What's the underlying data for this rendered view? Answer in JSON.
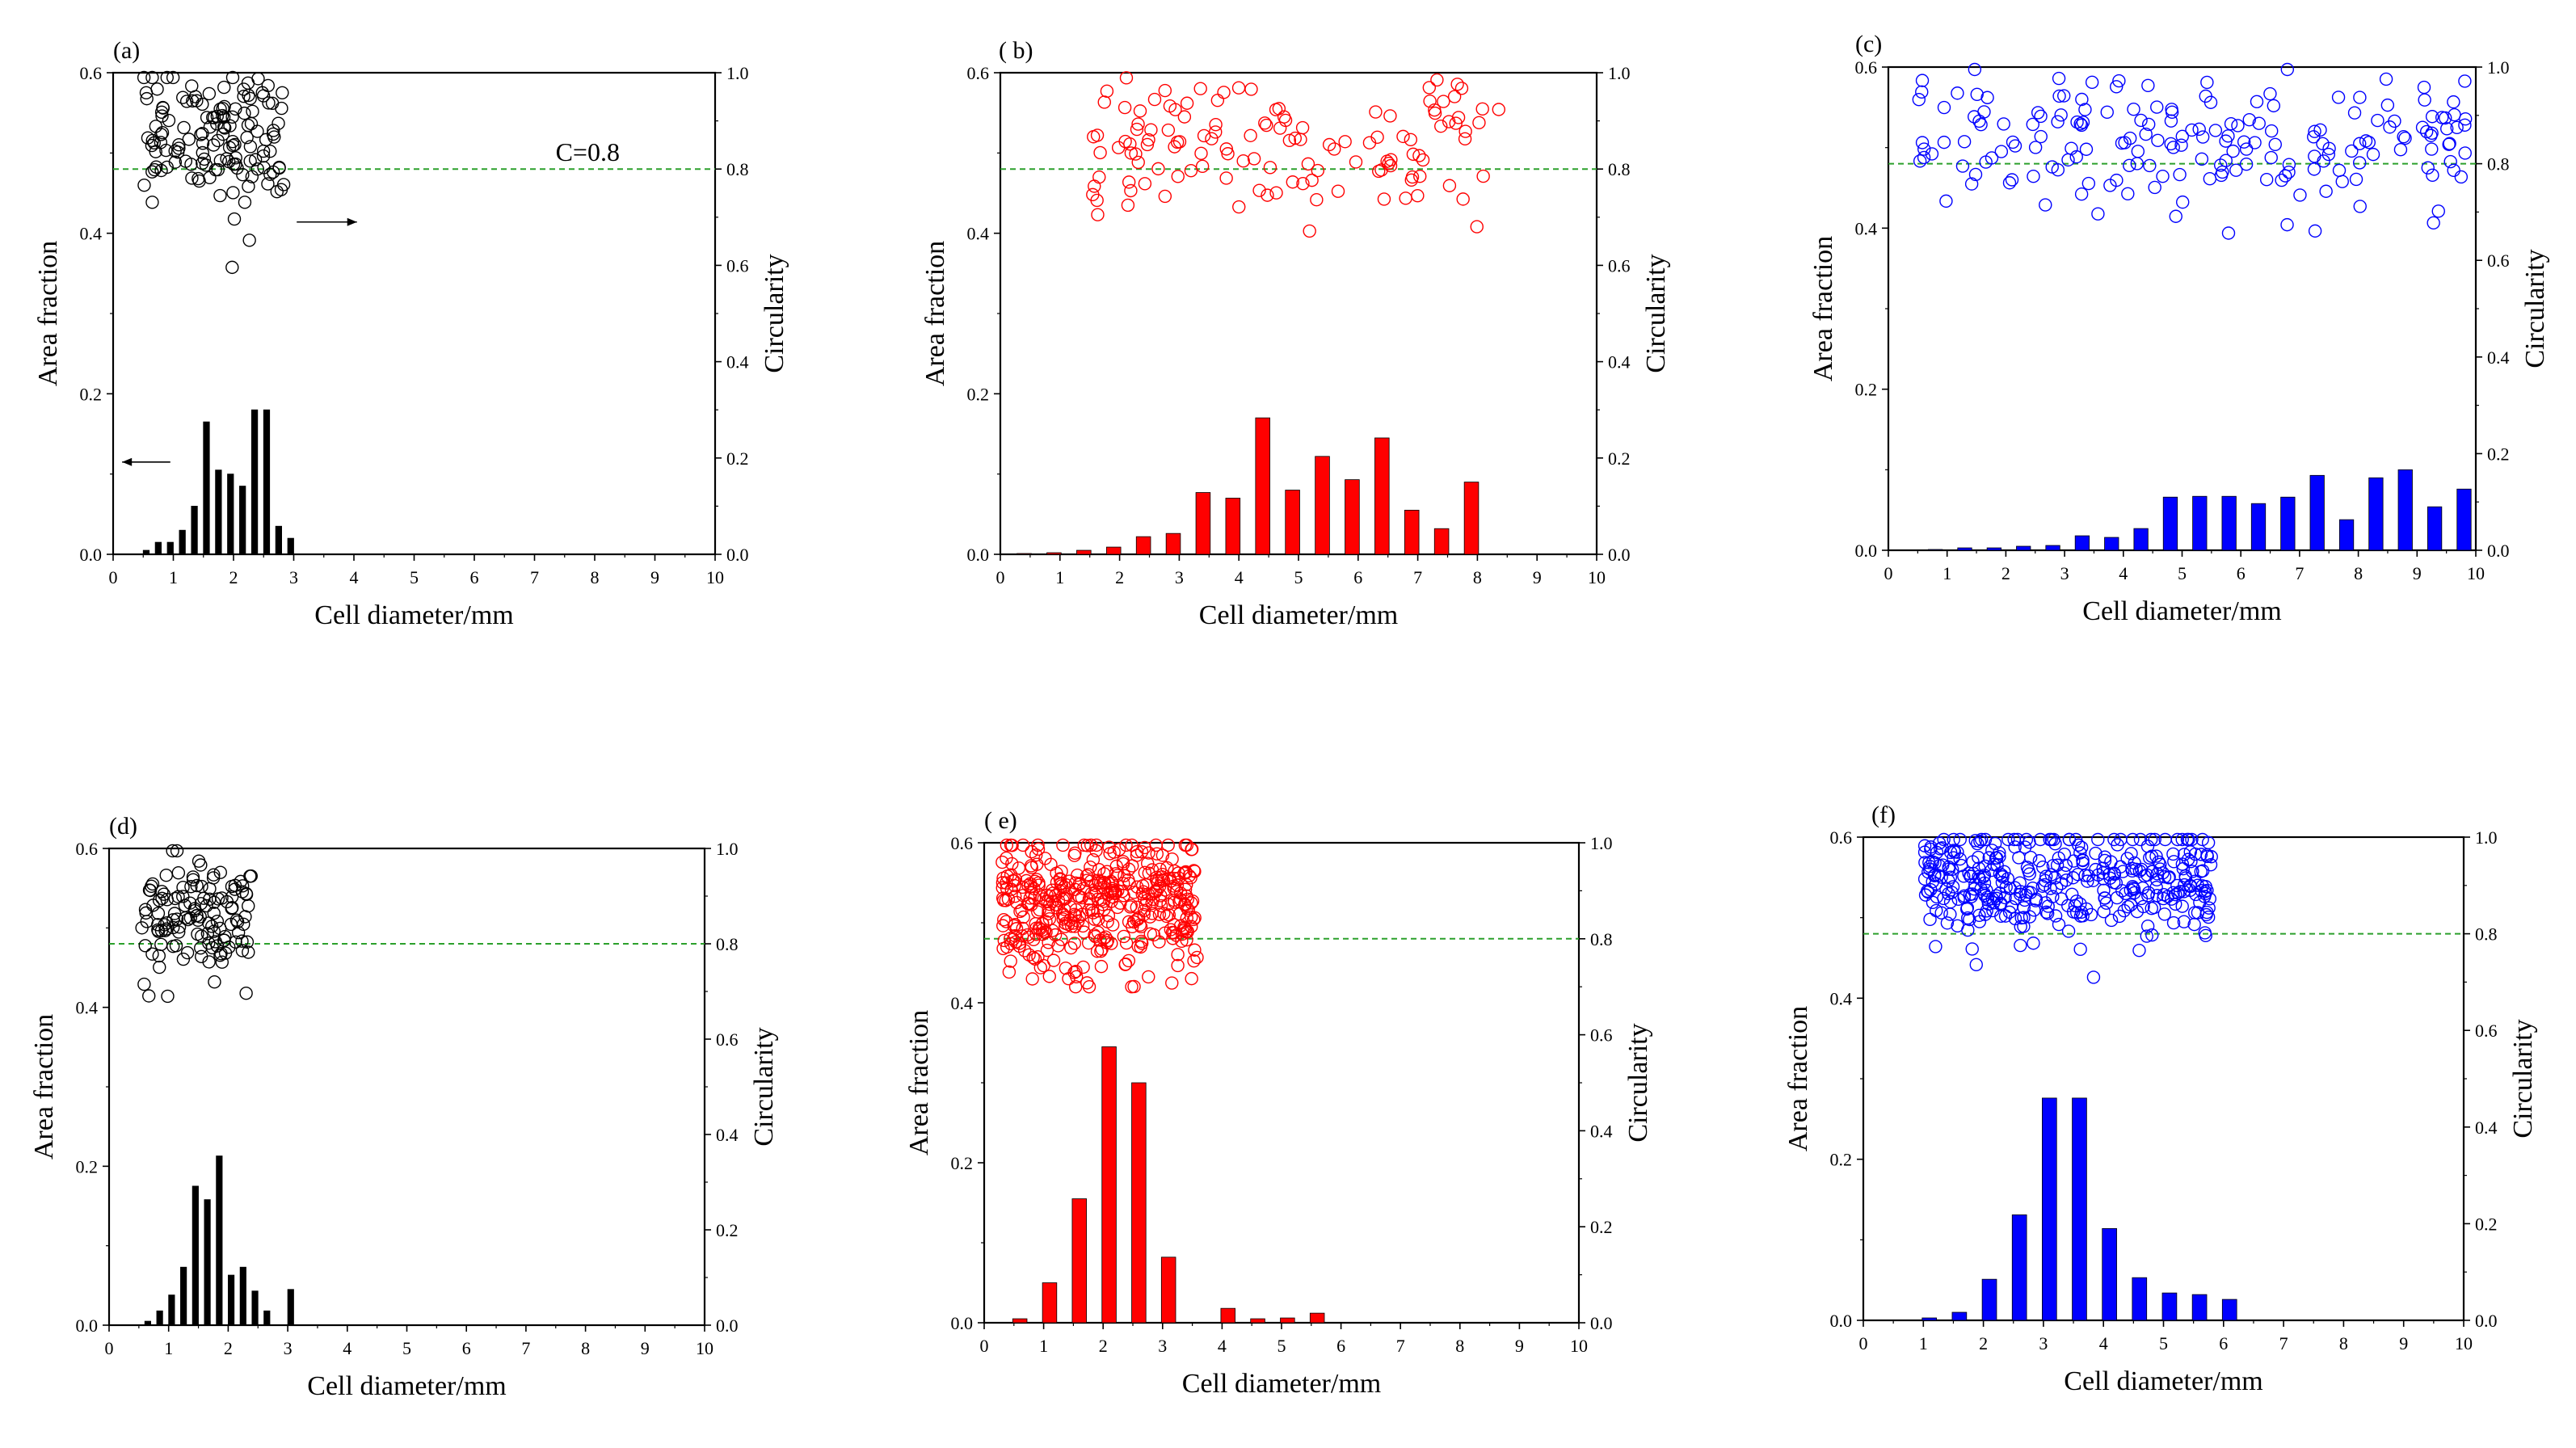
{
  "figure": {
    "background": "#ffffff"
  },
  "chart_data": [
    {
      "panel": "(a)",
      "type": "bar+scatter",
      "xlabel": "Cell diameter/mm",
      "ylabel": "Area fraction",
      "y2label": "Circularity",
      "xlim": [
        0,
        10
      ],
      "ylim": [
        0,
        0.6
      ],
      "y2lim": [
        0,
        1.0
      ],
      "xticks": [
        "0",
        "1",
        "2",
        "3",
        "4",
        "5",
        "6",
        "7",
        "8",
        "9",
        "10"
      ],
      "yticks": [
        "0.0",
        "0.2",
        "0.4",
        "0.6"
      ],
      "y2ticks": [
        "0.0",
        "0.2",
        "0.4",
        "0.6",
        "0.8",
        "1.0"
      ],
      "color": "#000000",
      "threshold": 0.8,
      "threshold_color": "#2ca02c",
      "annotation": "C=0.8",
      "bar_width": 0.1,
      "bars": {
        "x": [
          0.55,
          0.75,
          0.95,
          1.15,
          1.35,
          1.55,
          1.75,
          1.95,
          2.15,
          2.35,
          2.55,
          2.75,
          2.95
        ],
        "values": [
          0.005,
          0.015,
          0.015,
          0.03,
          0.06,
          0.165,
          0.105,
          0.1,
          0.085,
          0.18,
          0.18,
          0.035,
          0.02
        ]
      },
      "scatter": {
        "x_range": [
          0.5,
          2.85
        ],
        "circ_mean": 0.86,
        "circ_sd": 0.07,
        "circ_range": [
          0.53,
          0.99
        ],
        "count": 140,
        "seed": 11
      }
    },
    {
      "panel": "( b)",
      "type": "bar+scatter",
      "xlabel": "Cell diameter/mm",
      "ylabel": "Area fraction",
      "y2label": "Circularity",
      "xlim": [
        0,
        10
      ],
      "ylim": [
        0,
        0.6
      ],
      "y2lim": [
        0,
        1.0
      ],
      "xticks": [
        "0",
        "1",
        "2",
        "3",
        "4",
        "5",
        "6",
        "7",
        "8",
        "9",
        "10"
      ],
      "yticks": [
        "0.0",
        "0.2",
        "0.4",
        "0.6"
      ],
      "y2ticks": [
        "0.0",
        "0.2",
        "0.4",
        "0.6",
        "0.8",
        "1.0"
      ],
      "color": "#ff0000",
      "threshold": 0.8,
      "threshold_color": "#2ca02c",
      "bar_width": 0.24,
      "bars": {
        "x": [
          0.4,
          0.9,
          1.4,
          1.9,
          2.4,
          2.9,
          3.4,
          3.9,
          4.4,
          4.9,
          5.4,
          5.9,
          6.4,
          6.9,
          7.4,
          7.9
        ],
        "values": [
          0.001,
          0.002,
          0.005,
          0.009,
          0.022,
          0.026,
          0.077,
          0.07,
          0.17,
          0.08,
          0.122,
          0.093,
          0.145,
          0.055,
          0.032,
          0.09
        ]
      },
      "scatter": {
        "x_range": [
          1.5,
          8.4
        ],
        "circ_mean": 0.85,
        "circ_sd": 0.08,
        "circ_range": [
          0.46,
          0.99
        ],
        "count": 130,
        "seed": 23
      }
    },
    {
      "panel": "(c)",
      "type": "bar+scatter",
      "xlabel": "Cell diameter/mm",
      "ylabel": "Area fraction",
      "y2label": "Circularity",
      "xlim": [
        0,
        10
      ],
      "ylim": [
        0,
        0.6
      ],
      "y2lim": [
        0,
        1.0
      ],
      "xticks": [
        "0",
        "1",
        "2",
        "3",
        "4",
        "5",
        "6",
        "7",
        "8",
        "9",
        "10"
      ],
      "yticks": [
        "0.0",
        "0.2",
        "0.4",
        "0.6"
      ],
      "y2ticks": [
        "0.0",
        "0.2",
        "0.4",
        "0.6",
        "0.8",
        "1.0"
      ],
      "color": "#0000ff",
      "threshold": 0.8,
      "threshold_color": "#2ca02c",
      "bar_width": 0.24,
      "bars": {
        "x": [
          0.8,
          1.3,
          1.8,
          2.3,
          2.8,
          3.3,
          3.8,
          4.3,
          4.8,
          5.3,
          5.8,
          6.3,
          6.8,
          7.3,
          7.8,
          8.3,
          8.8,
          9.3,
          9.8
        ],
        "values": [
          0.001,
          0.003,
          0.003,
          0.005,
          0.006,
          0.018,
          0.016,
          0.027,
          0.066,
          0.067,
          0.067,
          0.058,
          0.066,
          0.093,
          0.038,
          0.09,
          0.1,
          0.054,
          0.076
        ]
      },
      "scatter": {
        "x_range": [
          0.5,
          9.9
        ],
        "circ_mean": 0.85,
        "circ_sd": 0.07,
        "circ_range": [
          0.51,
          0.995
        ],
        "count": 190,
        "seed": 37
      }
    },
    {
      "panel": "(d)",
      "type": "bar+scatter",
      "xlabel": "Cell diameter/mm",
      "ylabel": "Area fraction",
      "y2label": "Circularity",
      "xlim": [
        0,
        10
      ],
      "ylim": [
        0,
        0.6
      ],
      "y2lim": [
        0,
        1.0
      ],
      "xticks": [
        "0",
        "1",
        "2",
        "3",
        "4",
        "5",
        "6",
        "7",
        "8",
        "9",
        "10"
      ],
      "yticks": [
        "0.0",
        "0.2",
        "0.4",
        "0.6"
      ],
      "y2ticks": [
        "0.0",
        "0.2",
        "0.4",
        "0.6",
        "0.8",
        "1.0"
      ],
      "color": "#000000",
      "threshold": 0.8,
      "threshold_color": "#2ca02c",
      "bar_width": 0.1,
      "bars": {
        "x": [
          0.65,
          0.85,
          1.05,
          1.25,
          1.45,
          1.65,
          1.85,
          2.05,
          2.25,
          2.45,
          2.65,
          3.05
        ],
        "values": [
          0.005,
          0.018,
          0.038,
          0.073,
          0.175,
          0.158,
          0.213,
          0.063,
          0.073,
          0.043,
          0.018,
          0.045
        ]
      },
      "scatter": {
        "x_range": [
          0.55,
          2.4
        ],
        "circ_mean": 0.85,
        "circ_sd": 0.06,
        "circ_range": [
          0.69,
          0.995
        ],
        "count": 130,
        "seed": 41
      }
    },
    {
      "panel": "( e)",
      "type": "bar+scatter",
      "xlabel": "Cell diameter/mm",
      "ylabel": "Area fraction",
      "y2label": "Circularity",
      "xlim": [
        0,
        10
      ],
      "ylim": [
        0,
        0.6
      ],
      "y2lim": [
        0,
        1.0
      ],
      "xticks": [
        "0",
        "1",
        "2",
        "3",
        "4",
        "5",
        "6",
        "7",
        "8",
        "9",
        "10"
      ],
      "yticks": [
        "0.0",
        "0.2",
        "0.4",
        "0.6"
      ],
      "y2ticks": [
        "0.0",
        "0.2",
        "0.4",
        "0.6",
        "0.8",
        "1.0"
      ],
      "color": "#ff0000",
      "threshold": 0.8,
      "threshold_color": "#2ca02c",
      "bar_width": 0.24,
      "bars": {
        "x": [
          0.6,
          1.1,
          1.6,
          2.1,
          2.6,
          3.1,
          4.1,
          4.6,
          5.1,
          5.6
        ],
        "values": [
          0.005,
          0.05,
          0.155,
          0.345,
          0.3,
          0.082,
          0.018,
          0.005,
          0.006,
          0.012
        ]
      },
      "scatter": {
        "x_range": [
          0.3,
          3.6
        ],
        "circ_mean": 0.87,
        "circ_sd": 0.07,
        "circ_range": [
          0.7,
          0.995
        ],
        "count": 420,
        "seed": 53
      }
    },
    {
      "panel": "(f)",
      "type": "bar+scatter",
      "xlabel": "Cell diameter/mm",
      "ylabel": "Area fraction",
      "y2label": "Circularity",
      "xlim": [
        0,
        10
      ],
      "ylim": [
        0,
        0.6
      ],
      "y2lim": [
        0,
        1.0
      ],
      "xticks": [
        "0",
        "1",
        "2",
        "3",
        "4",
        "5",
        "6",
        "7",
        "8",
        "9",
        "10"
      ],
      "yticks": [
        "0.0",
        "0.2",
        "0.4",
        "0.6"
      ],
      "y2ticks": [
        "0.0",
        "0.2",
        "0.4",
        "0.6",
        "0.8",
        "1.0"
      ],
      "color": "#0000ff",
      "threshold": 0.8,
      "threshold_color": "#2ca02c",
      "bar_width": 0.24,
      "bars": {
        "x": [
          1.1,
          1.6,
          2.1,
          2.6,
          3.1,
          3.6,
          4.1,
          4.6,
          5.1,
          5.6,
          6.1
        ],
        "values": [
          0.003,
          0.01,
          0.051,
          0.131,
          0.276,
          0.276,
          0.114,
          0.053,
          0.034,
          0.032,
          0.026
        ]
      },
      "scatter": {
        "x_range": [
          1.0,
          5.8
        ],
        "circ_mean": 0.91,
        "circ_sd": 0.06,
        "circ_range": [
          0.71,
          0.995
        ],
        "count": 380,
        "seed": 67
      }
    }
  ]
}
